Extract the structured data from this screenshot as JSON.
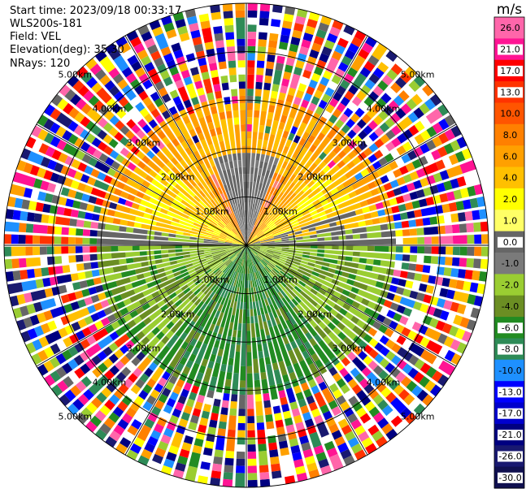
{
  "header": {
    "start_time": "Start time: 2023/09/18 00:33:17",
    "instrument": "WLS200s-181",
    "field": "Field: VEL",
    "elevation": "Elevation(deg): 35.30",
    "nrays": "NRays: 120"
  },
  "chart_data": {
    "type": "heatmap",
    "projection": "polar-ppi",
    "field": "VEL",
    "units": "m/s",
    "nrays": 120,
    "range_rings_km": [
      1.0,
      2.0,
      3.0,
      4.0,
      5.0
    ],
    "ring_label_suffix": "km",
    "spokes_deg": [
      0,
      30,
      60,
      90,
      120,
      150,
      180,
      210,
      240,
      270,
      300,
      330
    ],
    "colorbar": {
      "title": "m/s",
      "ticks": [
        "26.0",
        "21.0",
        "17.0",
        "13.0",
        "10.0",
        "8.0",
        "6.0",
        "4.0",
        "2.0",
        "1.0",
        "0.0",
        "-1.0",
        "-2.0",
        "-4.0",
        "-6.0",
        "-8.0",
        "-10.0",
        "-13.0",
        "-17.0",
        "-21.0",
        "-26.0",
        "-30.0"
      ],
      "colors": [
        "#ff66aa",
        "#ff1493",
        "#ff0000",
        "#ff3300",
        "#ff5500",
        "#ff8000",
        "#ffa000",
        "#ffc000",
        "#ffff00",
        "#ffff66",
        "#666666",
        "#7a7a7a",
        "#9acd32",
        "#6b8e23",
        "#228b22",
        "#2e8b57",
        "#1e90ff",
        "#0000ff",
        "#0000cd",
        "#000080",
        "#191970",
        "#101050"
      ]
    },
    "pattern": {
      "north_sector": "positive 2 to 10 m/s (yellow-orange-salmon)",
      "south_sector": "negative -1 to -8 m/s (olive-green)",
      "beyond_3km": "noise"
    }
  }
}
